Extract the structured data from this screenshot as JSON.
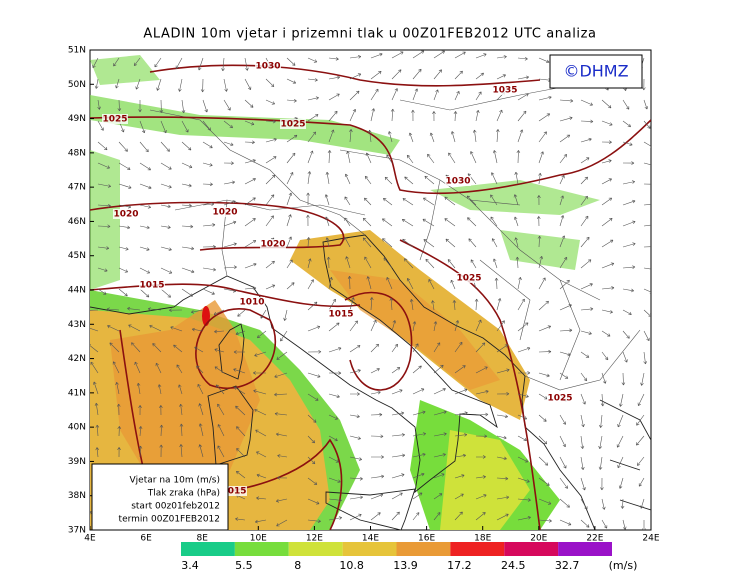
{
  "header": {
    "title": "ALADIN 10m vjetar i prizemni tlak u 00Z01FEB2012 UTC analiza",
    "logo": "©DHMZ"
  },
  "map": {
    "lat_labels": [
      "51N",
      "50N",
      "49N",
      "48N",
      "47N",
      "46N",
      "45N",
      "44N",
      "43N",
      "42N",
      "41N",
      "40N",
      "39N",
      "38N",
      "37N"
    ],
    "lon_labels": [
      "4E",
      "6E",
      "8E",
      "10E",
      "12E",
      "14E",
      "16E",
      "18E",
      "20E",
      "22E",
      "24E"
    ],
    "isobar_labels": [
      "1030",
      "1035",
      "1025",
      "1025",
      "1030",
      "1020",
      "1020",
      "1020",
      "1015",
      "1010",
      "1015",
      "1025",
      "1025",
      "1015"
    ]
  },
  "legend_box": {
    "lines": [
      "Vjetar na 10m (m/s)",
      "Tlak zraka (hPa)",
      "start 00z01feb2012",
      "termin 00Z01FEB2012"
    ]
  },
  "colorbar": {
    "labels": [
      "3.4",
      "5.5",
      "8",
      "10.8",
      "13.9",
      "17.2",
      "24.5",
      "32.7"
    ],
    "unit": "(m/s)",
    "colors": [
      "#19cc88",
      "#77dd3c",
      "#cfe23a",
      "#e6c43a",
      "#e99a36",
      "#ee2222",
      "#d6085c",
      "#9a12c8"
    ]
  }
}
